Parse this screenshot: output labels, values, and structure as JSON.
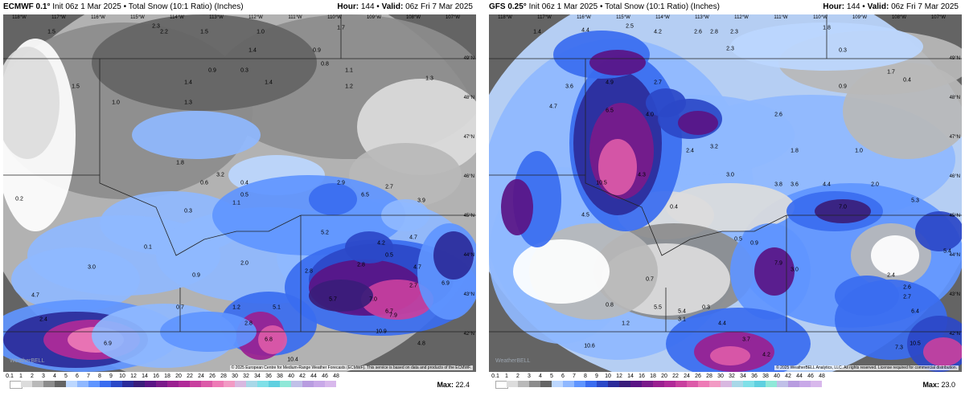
{
  "panels": [
    {
      "model": "ECMWF 0.1°",
      "init": "Init 06z 1 Mar 2025",
      "product": "Total Snow (10:1 Ratio) (Inches)",
      "hour_label": "Hour:",
      "hour": "144",
      "valid_label": "Valid:",
      "valid": "06z Fri 7 Mar 2025",
      "max_label": "Max:",
      "max": "22.4",
      "credit": "© 2025 European Centre for Medium-Range Weather Forecasts (ECMWF). This service is based on data and products of the ECMWF.",
      "watermark": "WeatherBELL",
      "lon_labels": [
        "118°W",
        "117°W",
        "116°W",
        "115°W",
        "114°W",
        "113°W",
        "112°W",
        "111°W",
        "110°W",
        "109°W",
        "108°W",
        "107°W"
      ],
      "lat_labels": [
        "49°N",
        "48°N",
        "47°N",
        "46°N",
        "45°N",
        "44°N",
        "43°N",
        "42°N"
      ],
      "values": [
        "1.5",
        "2.3",
        "2.2",
        "1.5",
        "1.4",
        "1.0",
        "1.7",
        "0.9",
        "1.3",
        "0.8",
        "1.5",
        "1.4",
        "0.9",
        "0.3",
        "1.1",
        "1.2",
        "1.4",
        "1.3",
        "1.0",
        "0.6",
        "1.8",
        "3.2",
        "0.5",
        "0.4",
        "0.3",
        "0.2",
        "1.1",
        "2.9",
        "2.7",
        "3.9",
        "2.8",
        "6.5",
        "5.2",
        "4.2",
        "4.7",
        "0.5",
        "4.7",
        "2.8",
        "2.7",
        "6.9",
        "5.7",
        "7.0",
        "6.7",
        "7.9",
        "10.9",
        "4.8",
        "5.1",
        "4.7",
        "2.4",
        "0.7",
        "1.2",
        "2.8",
        "6.8",
        "6.9",
        "10.4",
        "3.0",
        "0.1",
        "0.9",
        "2.0"
      ]
    },
    {
      "model": "GFS 0.25°",
      "init": "Init 06z 1 Mar 2025",
      "product": "Total Snow (10:1 Ratio) (Inches)",
      "hour_label": "Hour:",
      "hour": "144",
      "valid_label": "Valid:",
      "valid": "06z Fri 7 Mar 2025",
      "max_label": "Max:",
      "max": "23.0",
      "credit": "© 2025 WeatherBELL Analytics, LLC. All rights reserved. License required for commercial distribution.",
      "watermark": "WeatherBELL",
      "lon_labels": [
        "118°W",
        "117°W",
        "116°W",
        "115°W",
        "114°W",
        "113°W",
        "112°W",
        "111°W",
        "110°W",
        "109°W",
        "108°W",
        "107°W"
      ],
      "lat_labels": [
        "49°N",
        "48°N",
        "47°N",
        "46°N",
        "45°N",
        "44°N",
        "43°N",
        "42°N"
      ],
      "values": [
        "4.4",
        "2.5",
        "4.2",
        "2.6",
        "2.8",
        "2.3",
        "1.8",
        "0.3",
        "1.4",
        "2.3",
        "1.7",
        "0.9",
        "0.4",
        "3.6",
        "4.9",
        "2.7",
        "4.7",
        "6.5",
        "4.0",
        "2.6",
        "2.4",
        "3.2",
        "1.8",
        "1.0",
        "10.5",
        "4.3",
        "3.0",
        "3.8",
        "3.6",
        "4.4",
        "2.0",
        "7.0",
        "5.3",
        "4.5",
        "0.4",
        "0.5",
        "0.9",
        "7.9",
        "3.0",
        "5.4",
        "2.4",
        "2.6",
        "0.7",
        "0.8",
        "1.2",
        "5.5",
        "5.4",
        "0.3",
        "2.7",
        "6.4",
        "4.4",
        "3.1",
        "10.6",
        "3.7",
        "4.2",
        "7.3",
        "10.5"
      ]
    }
  ],
  "legend_ticks": [
    "0.1",
    "1",
    "2",
    "3",
    "4",
    "5",
    "6",
    "7",
    "8",
    "9",
    "10",
    "12",
    "14",
    "16",
    "18",
    "20",
    "22",
    "24",
    "26",
    "28",
    "30",
    "32",
    "34",
    "36",
    "38",
    "40",
    "42",
    "44",
    "46",
    "48"
  ],
  "legend_colors": [
    "#ffffff",
    "#dcdcdc",
    "#b9b9b9",
    "#8c8c8c",
    "#646464",
    "#bcd7ff",
    "#8fb8ff",
    "#5f95ff",
    "#3a6cf0",
    "#2b48c8",
    "#2b2b9a",
    "#3a1d7a",
    "#5a1485",
    "#7a1a8a",
    "#9a2090",
    "#b02a98",
    "#c8409e",
    "#dc5aa8",
    "#ee7ab6",
    "#f29ac4",
    "#d8b8e0",
    "#a8d8e8",
    "#7fe0e8",
    "#5fd0e0",
    "#8fe8d8",
    "#c0c0e8",
    "#b89ce0",
    "#c8a8e8",
    "#d8b8ec"
  ]
}
